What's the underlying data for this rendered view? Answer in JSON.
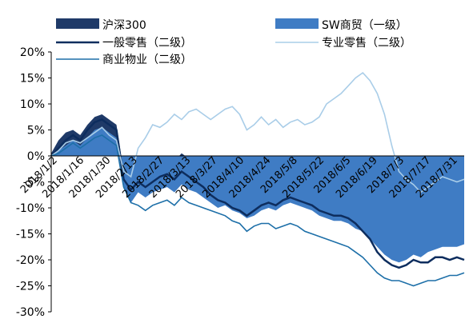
{
  "chart_data": {
    "type": "area",
    "ylim": [
      -30,
      20
    ],
    "yticks": [
      -30,
      -25,
      -20,
      -15,
      -10,
      -5,
      0,
      5,
      10,
      15,
      20
    ],
    "ytick_labels": [
      "-30%",
      "-25%",
      "-20%",
      "-15%",
      "-10%",
      "-5%",
      "0%",
      "5%",
      "10%",
      "15%",
      "20%"
    ],
    "x_tick_labels": [
      "2018/1/2",
      "2018/1/16",
      "2018/1/30",
      "2018/2/13",
      "2018/2/27",
      "2018/3/13",
      "2018/3/27",
      "2018/4/10",
      "2018/4/24",
      "2018/5/8",
      "2018/5/22",
      "2018/6/5",
      "2018/6/19",
      "2018/7/3",
      "2018/7/17",
      "2018/7/31"
    ],
    "x": [
      "2018/1/2",
      "2018/1/5",
      "2018/1/9",
      "2018/1/12",
      "2018/1/16",
      "2018/1/19",
      "2018/1/23",
      "2018/1/26",
      "2018/1/30",
      "2018/2/2",
      "2018/2/6",
      "2018/2/9",
      "2018/2/13",
      "2018/2/23",
      "2018/2/27",
      "2018/3/2",
      "2018/3/6",
      "2018/3/9",
      "2018/3/13",
      "2018/3/16",
      "2018/3/20",
      "2018/3/23",
      "2018/3/27",
      "2018/3/30",
      "2018/4/3",
      "2018/4/9",
      "2018/4/12",
      "2018/4/17",
      "2018/4/20",
      "2018/4/24",
      "2018/4/27",
      "2018/5/3",
      "2018/5/8",
      "2018/5/11",
      "2018/5/15",
      "2018/5/18",
      "2018/5/22",
      "2018/5/25",
      "2018/5/29",
      "2018/6/1",
      "2018/6/5",
      "2018/6/8",
      "2018/6/12",
      "2018/6/15",
      "2018/6/19",
      "2018/6/22",
      "2018/6/26",
      "2018/6/29",
      "2018/7/3",
      "2018/7/6",
      "2018/7/10",
      "2018/7/13",
      "2018/7/17",
      "2018/7/20",
      "2018/7/24",
      "2018/7/27",
      "2018/7/31",
      "2018/8/2"
    ],
    "series": [
      {
        "name": "沪深300",
        "kind": "area",
        "color": "#1f3a68",
        "values": [
          0.5,
          3.0,
          4.5,
          5.0,
          4.0,
          6.0,
          7.5,
          8.0,
          7.0,
          6.0,
          -3.0,
          -5.0,
          -1.5,
          -2.5,
          -1.0,
          -0.5,
          0.0,
          -1.0,
          0.5,
          -0.5,
          -1.0,
          -2.0,
          -3.5,
          -5.0,
          -4.5,
          -5.5,
          -6.0,
          -7.0,
          -6.5,
          -5.5,
          -5.0,
          -6.0,
          -5.0,
          -4.5,
          -5.0,
          -6.0,
          -7.0,
          -8.0,
          -9.0,
          -9.5,
          -10.0,
          -11.0,
          -12.5,
          -14.0,
          -15.0,
          -16.5,
          -17.0,
          -17.5,
          -18.0,
          -17.0,
          -15.5,
          -15.0,
          -14.0,
          -13.0,
          -12.5,
          -11.0,
          -10.0,
          -9.5
        ]
      },
      {
        "name": "SW商贸（一级）",
        "kind": "area",
        "color": "#3f7cc4",
        "values": [
          0.0,
          1.0,
          2.0,
          3.0,
          2.0,
          3.5,
          5.0,
          5.5,
          4.5,
          3.5,
          -6.0,
          -9.0,
          -7.0,
          -8.0,
          -7.0,
          -6.5,
          -6.0,
          -7.0,
          -5.5,
          -6.5,
          -7.0,
          -8.0,
          -9.0,
          -10.0,
          -9.5,
          -10.5,
          -11.0,
          -12.0,
          -11.5,
          -10.5,
          -10.0,
          -10.5,
          -9.5,
          -9.0,
          -9.5,
          -10.0,
          -10.5,
          -11.5,
          -12.0,
          -12.5,
          -12.5,
          -13.0,
          -14.0,
          -14.5,
          -16.0,
          -17.5,
          -19.0,
          -20.0,
          -20.5,
          -20.0,
          -19.0,
          -19.5,
          -18.5,
          -18.0,
          -17.5,
          -17.5,
          -17.5,
          -17.0
        ]
      },
      {
        "name": "一般零售（二级）",
        "kind": "line",
        "color": "#0d2d5e",
        "values": [
          0.0,
          1.5,
          3.0,
          4.0,
          3.0,
          5.0,
          6.5,
          7.0,
          6.0,
          5.0,
          -4.5,
          -6.5,
          -5.0,
          -6.0,
          -5.0,
          -4.0,
          -3.5,
          -4.5,
          -3.0,
          -4.0,
          -5.0,
          -6.0,
          -7.5,
          -8.5,
          -9.0,
          -10.0,
          -10.5,
          -11.5,
          -10.5,
          -9.5,
          -9.0,
          -9.5,
          -8.5,
          -8.0,
          -8.5,
          -9.0,
          -9.5,
          -10.5,
          -11.0,
          -11.5,
          -11.5,
          -12.0,
          -13.0,
          -14.5,
          -16.0,
          -18.5,
          -20.0,
          -21.0,
          -21.5,
          -21.0,
          -20.0,
          -20.5,
          -20.5,
          -19.5,
          -19.5,
          -20.0,
          -19.5,
          -20.0
        ]
      },
      {
        "name": "专业零售（二级）",
        "kind": "line",
        "color": "#a9cde8",
        "values": [
          0.0,
          1.0,
          2.5,
          3.0,
          2.5,
          3.5,
          4.5,
          5.5,
          4.0,
          3.0,
          -3.0,
          -4.0,
          1.5,
          3.5,
          6.0,
          5.5,
          6.5,
          8.0,
          7.0,
          8.5,
          9.0,
          8.0,
          7.0,
          8.0,
          9.0,
          9.5,
          8.0,
          5.0,
          6.0,
          7.5,
          6.0,
          7.0,
          5.5,
          6.5,
          7.0,
          6.0,
          6.5,
          7.5,
          10.0,
          11.0,
          12.0,
          13.5,
          15.0,
          16.0,
          14.5,
          12.0,
          8.0,
          2.0,
          -3.0,
          -4.5,
          -5.5,
          -7.0,
          -6.0,
          -5.0,
          -4.0,
          -4.5,
          -5.0,
          -4.5
        ]
      },
      {
        "name": "商业物业（二级）",
        "kind": "line",
        "color": "#1d6fa8",
        "values": [
          0.0,
          0.5,
          1.5,
          2.5,
          1.5,
          2.5,
          3.5,
          4.0,
          3.0,
          2.0,
          -6.0,
          -9.0,
          -9.5,
          -10.5,
          -9.5,
          -9.0,
          -8.5,
          -9.5,
          -8.0,
          -9.0,
          -9.5,
          -10.0,
          -10.5,
          -11.0,
          -11.5,
          -12.5,
          -13.0,
          -14.5,
          -13.5,
          -13.0,
          -13.0,
          -14.0,
          -13.5,
          -13.0,
          -13.5,
          -14.5,
          -15.0,
          -15.5,
          -16.0,
          -16.5,
          -17.0,
          -17.5,
          -18.5,
          -19.5,
          -21.0,
          -22.5,
          -23.5,
          -24.0,
          -24.0,
          -24.5,
          -25.0,
          -24.5,
          -24.0,
          -24.0,
          -23.5,
          -23.0,
          -23.0,
          -22.5
        ]
      }
    ]
  }
}
